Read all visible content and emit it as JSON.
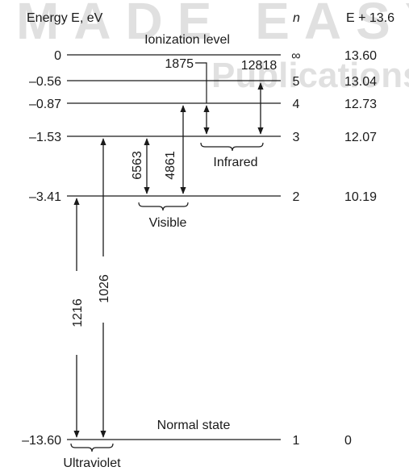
{
  "header": {
    "energy_label": "Energy E, eV",
    "n_label": "n",
    "sum_label": "E + 13.6"
  },
  "watermark": {
    "line1": "MADE EASY",
    "line2": "Publications"
  },
  "levels": [
    {
      "n": "∞",
      "energy": "0",
      "shifted": "13.60",
      "caption": "Ionization level"
    },
    {
      "n": "5",
      "energy": "–0.56",
      "shifted": "13.04"
    },
    {
      "n": "4",
      "energy": "–0.87",
      "shifted": "12.73"
    },
    {
      "n": "3",
      "energy": "–1.53",
      "shifted": "12.07"
    },
    {
      "n": "2",
      "energy": "–3.41",
      "shifted": "10.19"
    },
    {
      "n": "1",
      "energy": "–13.60",
      "shifted": "0",
      "caption": "Normal state"
    }
  ],
  "transitions": [
    {
      "wavelength": "1216",
      "from": "2",
      "to": "1",
      "series": "Ultraviolet"
    },
    {
      "wavelength": "1026",
      "from": "3",
      "to": "1",
      "series": "Ultraviolet"
    },
    {
      "wavelength": "6563",
      "from": "3",
      "to": "2",
      "series": "Visible"
    },
    {
      "wavelength": "4861",
      "from": "4",
      "to": "2",
      "series": "Visible"
    },
    {
      "wavelength": "1875",
      "from": "4",
      "to": "3",
      "series": "Infrared"
    },
    {
      "wavelength": "12818",
      "from": "5",
      "to": "3",
      "series": "Infrared"
    }
  ],
  "series_labels": {
    "ultraviolet": "Ultraviolet",
    "visible": "Visible",
    "infrared": "Infrared"
  }
}
